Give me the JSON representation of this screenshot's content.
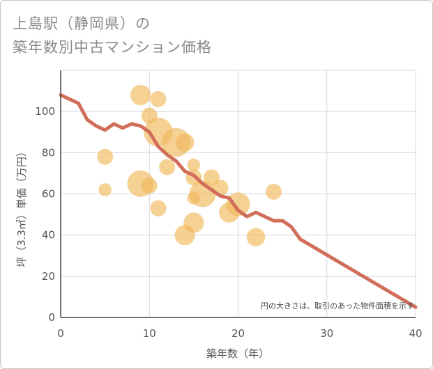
{
  "chart_data": {
    "type": "scatter",
    "title_line1": "上島駅（静岡県）の",
    "title_line2": "築年数別中古マンション価格",
    "xlabel": "築年数（年）",
    "ylabel": "坪（3.3㎡）単価（万円）",
    "xlim": [
      0,
      40
    ],
    "ylim": [
      0,
      120
    ],
    "x_ticks": [
      "0",
      "10",
      "20",
      "30",
      "40"
    ],
    "y_ticks": [
      "0",
      "20",
      "40",
      "60",
      "80",
      "100"
    ],
    "grid": true,
    "note": "円の大きさは、取引のあった物件面積を示す",
    "colors": {
      "bubble": "#f0b95a",
      "line": "#d16e5a",
      "grid": "#d0d8e0"
    },
    "bubbles": [
      {
        "x": 5,
        "y": 78,
        "size": 1
      },
      {
        "x": 5,
        "y": 62,
        "size": 0.5
      },
      {
        "x": 9,
        "y": 108,
        "size": 2
      },
      {
        "x": 9,
        "y": 65,
        "size": 4
      },
      {
        "x": 10,
        "y": 98,
        "size": 1
      },
      {
        "x": 10,
        "y": 64,
        "size": 1
      },
      {
        "x": 11,
        "y": 106,
        "size": 1
      },
      {
        "x": 11,
        "y": 90,
        "size": 5
      },
      {
        "x": 11,
        "y": 53,
        "size": 1
      },
      {
        "x": 12,
        "y": 73,
        "size": 1
      },
      {
        "x": 13,
        "y": 85,
        "size": 5
      },
      {
        "x": 14,
        "y": 85,
        "size": 1.5
      },
      {
        "x": 14,
        "y": 40,
        "size": 2
      },
      {
        "x": 15,
        "y": 74,
        "size": 0.5
      },
      {
        "x": 15,
        "y": 68,
        "size": 1
      },
      {
        "x": 15,
        "y": 58,
        "size": 0.5
      },
      {
        "x": 15,
        "y": 46,
        "size": 2
      },
      {
        "x": 16,
        "y": 60,
        "size": 4
      },
      {
        "x": 17,
        "y": 68,
        "size": 1
      },
      {
        "x": 18,
        "y": 63,
        "size": 1
      },
      {
        "x": 19,
        "y": 51,
        "size": 2
      },
      {
        "x": 20,
        "y": 55,
        "size": 3
      },
      {
        "x": 22,
        "y": 39,
        "size": 1.5
      },
      {
        "x": 24,
        "y": 61,
        "size": 1
      }
    ],
    "trend": {
      "x": [
        0,
        1,
        2,
        3,
        4,
        5,
        6,
        7,
        8,
        9,
        10,
        11,
        12,
        13,
        14,
        15,
        16,
        17,
        18,
        19,
        20,
        21,
        22,
        23,
        24,
        25,
        26,
        27,
        40
      ],
      "y": [
        108,
        106,
        104,
        96,
        93,
        91,
        94,
        92,
        94,
        93,
        90,
        83,
        79,
        76,
        71,
        69,
        65,
        62,
        59,
        58,
        52,
        49,
        51,
        49,
        47,
        47,
        44,
        38,
        5
      ]
    }
  }
}
